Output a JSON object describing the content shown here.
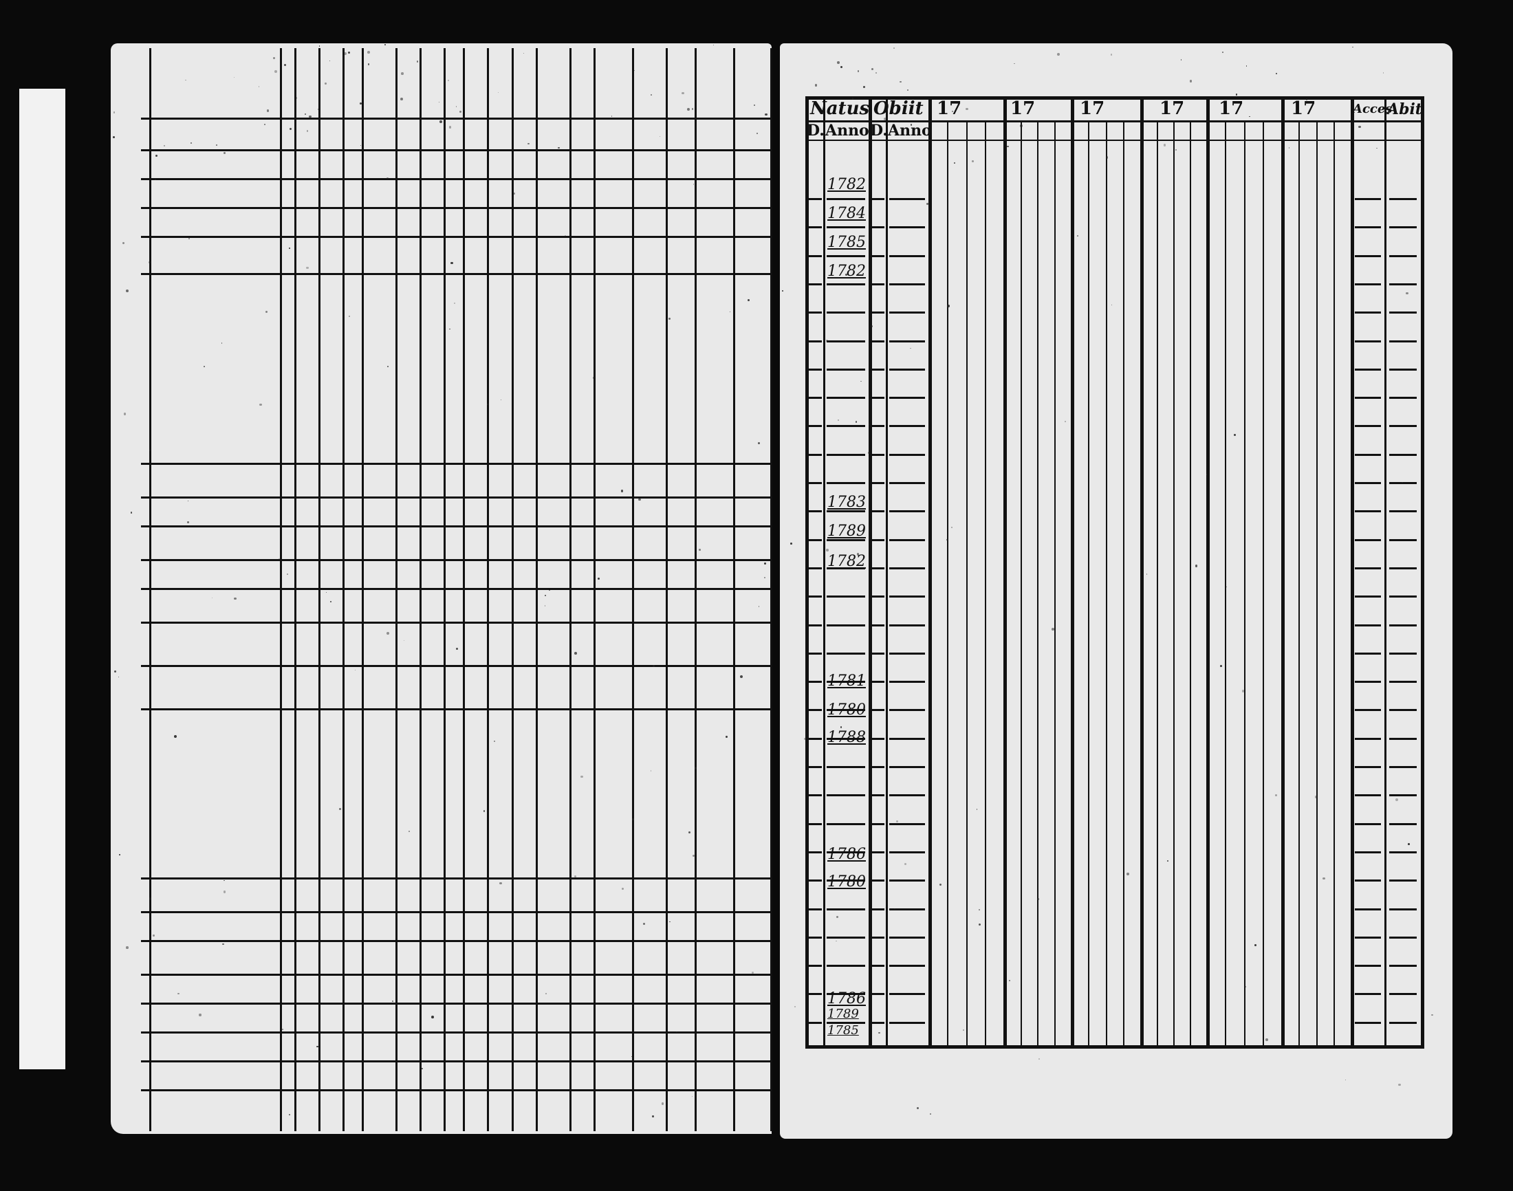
{
  "document": {
    "header": {
      "natus": "Natus",
      "obiit": "Obiit",
      "year_groups": [
        "17",
        "17",
        "17",
        "17",
        "17",
        "17"
      ],
      "accessit": "Acces",
      "abiit": "Abit"
    },
    "subheader": {
      "natus_day": "D.",
      "natus_year": "Anno",
      "obiit_day": "D.",
      "obiit_year": "Anno"
    },
    "birth_years": [
      "1782",
      "1784",
      "1785",
      "1782",
      "1783",
      "1789",
      "1782",
      "1781",
      "1780",
      "1788",
      "1786",
      "1780",
      "1786",
      "1789",
      "1785"
    ],
    "colors": {
      "ink": "#111111",
      "paper": "#e9e9e9",
      "background": "#0a0a0a"
    }
  }
}
